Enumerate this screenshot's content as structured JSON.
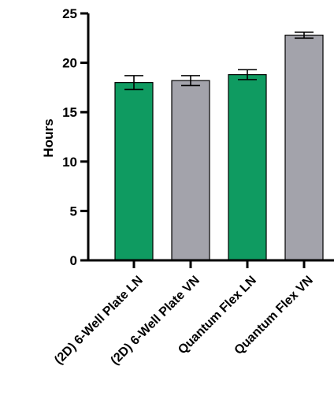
{
  "chart_data": {
    "type": "bar",
    "title": "",
    "xlabel": "",
    "ylabel": "Hours",
    "ylim": [
      0,
      25
    ],
    "yticks": [
      0,
      5,
      10,
      15,
      20,
      25
    ],
    "ytick_labels": [
      "0",
      "5",
      "10",
      "15",
      "20",
      "25"
    ],
    "categories": [
      "(2D) 6-Well Plate LN",
      "(2D) 6-Well Plate VN",
      "Quantum Flex LN",
      "Quantum Flex VN"
    ],
    "values": [
      18.0,
      18.2,
      18.8,
      22.8
    ],
    "errors": [
      0.7,
      0.5,
      0.5,
      0.3
    ],
    "colors": [
      "#0f9b61",
      "#a3a3ab",
      "#0f9b61",
      "#a3a3ab"
    ],
    "grid": false,
    "legend": "none"
  }
}
